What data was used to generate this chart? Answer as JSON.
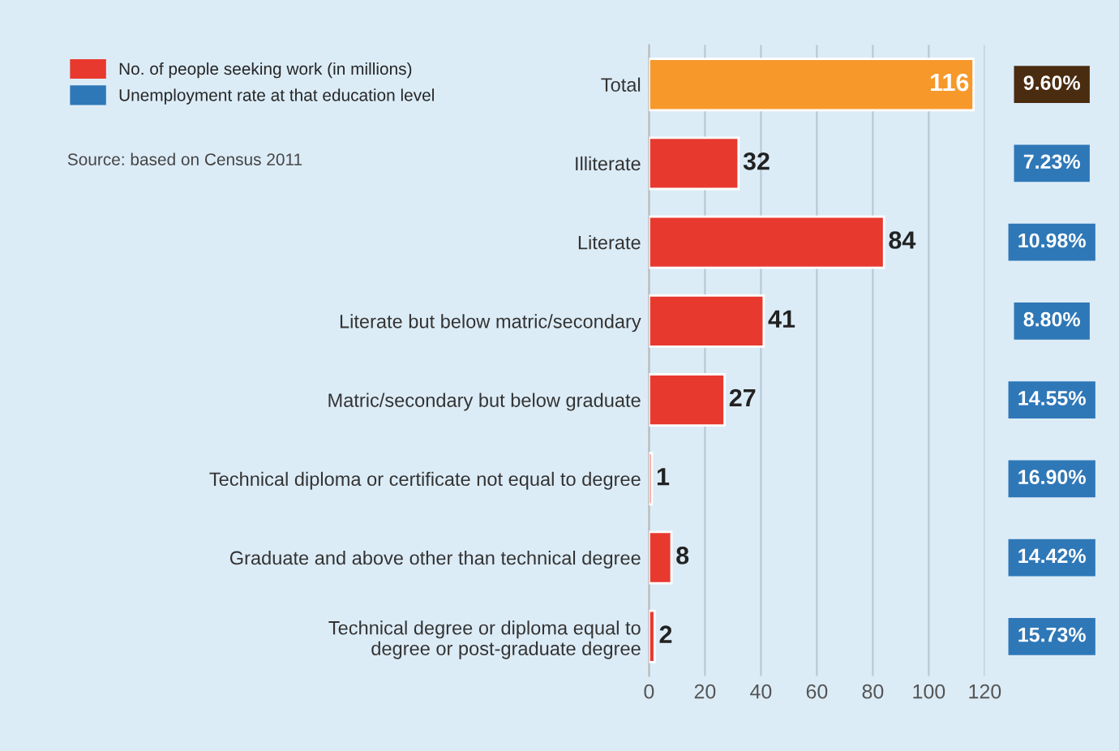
{
  "chart_data": {
    "type": "bar",
    "orientation": "horizontal",
    "categories": [
      "Total",
      "Illiterate",
      "Literate",
      "Literate but below matric/secondary",
      "Matric/secondary but below graduate",
      "Technical diploma or certificate not equal to degree",
      "Graduate and above other than technical degree",
      "Technical degree or diploma equal to\ndegree or post-graduate degree"
    ],
    "series": [
      {
        "name": "No. of people seeking work (in millions)",
        "color": "#e8392f",
        "colors": [
          "#f7982a",
          "#e8392f",
          "#e8392f",
          "#e8392f",
          "#e8392f",
          "#e8392f",
          "#e8392f",
          "#e8392f"
        ],
        "values": [
          116,
          32,
          84,
          41,
          27,
          1,
          8,
          2
        ]
      },
      {
        "name": "Unemployment rate at that education level",
        "type": "other",
        "color": "#2f78b8",
        "colors": [
          "#4a2c10",
          "#2f78b8",
          "#2f78b8",
          "#2f78b8",
          "#2f78b8",
          "#2f78b8",
          "#2f78b8",
          "#2f78b8"
        ],
        "values": [
          null,
          null,
          null,
          null,
          null,
          null,
          null,
          null
        ],
        "value_labels": [
          "9.60%",
          "7.23%",
          "10.98%",
          "8.80%",
          "14.55%",
          "16.90%",
          "14.42%",
          "15.73%"
        ]
      }
    ],
    "data_labels": true,
    "xlim": [
      0,
      120
    ],
    "xticks": [
      0,
      20,
      40,
      60,
      80,
      100,
      120
    ],
    "grid": "x",
    "legend": "top left",
    "annotations": [
      "Source: based on Census 2011"
    ]
  }
}
